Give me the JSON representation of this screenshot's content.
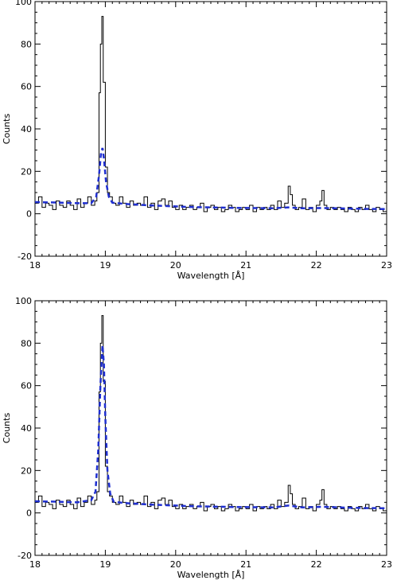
{
  "chart_data": [
    {
      "type": "line",
      "panel": "top",
      "xlabel": "Wavelength [Å]",
      "ylabel": "Counts",
      "xlim": [
        18,
        23
      ],
      "ylim": [
        -20,
        100
      ],
      "xticks": [
        18,
        19,
        20,
        21,
        22,
        23
      ],
      "yticks": [
        -20,
        0,
        20,
        40,
        60,
        80,
        100
      ],
      "grid": false,
      "series": [
        {
          "style": "histogram",
          "color": "#000000",
          "points": [
            [
              18.0,
              5
            ],
            [
              18.05,
              8
            ],
            [
              18.1,
              3
            ],
            [
              18.15,
              5
            ],
            [
              18.2,
              4
            ],
            [
              18.25,
              2
            ],
            [
              18.3,
              6
            ],
            [
              18.35,
              4
            ],
            [
              18.4,
              3
            ],
            [
              18.45,
              6
            ],
            [
              18.5,
              4
            ],
            [
              18.55,
              2
            ],
            [
              18.6,
              7
            ],
            [
              18.65,
              3
            ],
            [
              18.7,
              5
            ],
            [
              18.75,
              8
            ],
            [
              18.8,
              4
            ],
            [
              18.85,
              6
            ],
            [
              18.88,
              10
            ],
            [
              18.91,
              57
            ],
            [
              18.93,
              80
            ],
            [
              18.95,
              93
            ],
            [
              18.97,
              62
            ],
            [
              19.0,
              22
            ],
            [
              19.03,
              10
            ],
            [
              19.06,
              8
            ],
            [
              19.1,
              5
            ],
            [
              19.15,
              4
            ],
            [
              19.2,
              8
            ],
            [
              19.25,
              5
            ],
            [
              19.3,
              3
            ],
            [
              19.35,
              6
            ],
            [
              19.4,
              4
            ],
            [
              19.45,
              5
            ],
            [
              19.5,
              4
            ],
            [
              19.55,
              8
            ],
            [
              19.6,
              3
            ],
            [
              19.65,
              5
            ],
            [
              19.7,
              2
            ],
            [
              19.75,
              6
            ],
            [
              19.8,
              7
            ],
            [
              19.85,
              4
            ],
            [
              19.9,
              6
            ],
            [
              19.95,
              3
            ],
            [
              20.0,
              2
            ],
            [
              20.05,
              4
            ],
            [
              20.1,
              2
            ],
            [
              20.15,
              3
            ],
            [
              20.2,
              4
            ],
            [
              20.25,
              2
            ],
            [
              20.3,
              3
            ],
            [
              20.35,
              5
            ],
            [
              20.4,
              1
            ],
            [
              20.45,
              3
            ],
            [
              20.5,
              4
            ],
            [
              20.55,
              2
            ],
            [
              20.6,
              3
            ],
            [
              20.65,
              1
            ],
            [
              20.7,
              2
            ],
            [
              20.75,
              4
            ],
            [
              20.8,
              3
            ],
            [
              20.85,
              1
            ],
            [
              20.9,
              2
            ],
            [
              20.95,
              3
            ],
            [
              21.0,
              2
            ],
            [
              21.05,
              4
            ],
            [
              21.1,
              1
            ],
            [
              21.15,
              3
            ],
            [
              21.2,
              2
            ],
            [
              21.25,
              3
            ],
            [
              21.3,
              2
            ],
            [
              21.35,
              4
            ],
            [
              21.4,
              2
            ],
            [
              21.45,
              6
            ],
            [
              21.5,
              3
            ],
            [
              21.55,
              5
            ],
            [
              21.6,
              13
            ],
            [
              21.63,
              9
            ],
            [
              21.66,
              4
            ],
            [
              21.7,
              2
            ],
            [
              21.75,
              3
            ],
            [
              21.8,
              7
            ],
            [
              21.85,
              2
            ],
            [
              21.9,
              3
            ],
            [
              21.95,
              1
            ],
            [
              22.0,
              4
            ],
            [
              22.05,
              6
            ],
            [
              22.08,
              11
            ],
            [
              22.11,
              4
            ],
            [
              22.15,
              2
            ],
            [
              22.2,
              3
            ],
            [
              22.25,
              2
            ],
            [
              22.3,
              3
            ],
            [
              22.35,
              2
            ],
            [
              22.4,
              1
            ],
            [
              22.45,
              3
            ],
            [
              22.5,
              2
            ],
            [
              22.55,
              1
            ],
            [
              22.6,
              3
            ],
            [
              22.65,
              2
            ],
            [
              22.7,
              4
            ],
            [
              22.75,
              2
            ],
            [
              22.8,
              1
            ],
            [
              22.85,
              3
            ],
            [
              22.9,
              2
            ],
            [
              22.95,
              1
            ]
          ]
        },
        {
          "style": "dashed",
          "color": "#1f2fd0",
          "points": [
            [
              18.0,
              5.5
            ],
            [
              18.3,
              5.3
            ],
            [
              18.6,
              5
            ],
            [
              18.8,
              5
            ],
            [
              18.87,
              8
            ],
            [
              18.91,
              18
            ],
            [
              18.94,
              29
            ],
            [
              18.96,
              31
            ],
            [
              18.98,
              26
            ],
            [
              19.01,
              15
            ],
            [
              19.05,
              8
            ],
            [
              19.1,
              5.2
            ],
            [
              19.3,
              4.6
            ],
            [
              19.6,
              4
            ],
            [
              19.9,
              3.6
            ],
            [
              20.2,
              3.2
            ],
            [
              20.5,
              3
            ],
            [
              20.8,
              2.8
            ],
            [
              21.1,
              2.7
            ],
            [
              21.4,
              2.6
            ],
            [
              21.6,
              3
            ],
            [
              21.8,
              2.6
            ],
            [
              22.1,
              2.7
            ],
            [
              22.4,
              2.5
            ],
            [
              22.7,
              2.3
            ],
            [
              23.0,
              2.2
            ]
          ]
        }
      ]
    },
    {
      "type": "line",
      "panel": "bottom",
      "xlabel": "Wavelength [Å]",
      "ylabel": "Counts",
      "xlim": [
        18,
        23
      ],
      "ylim": [
        -20,
        100
      ],
      "xticks": [
        18,
        19,
        20,
        21,
        22,
        23
      ],
      "yticks": [
        -20,
        0,
        20,
        40,
        60,
        80,
        100
      ],
      "grid": false,
      "series": [
        {
          "style": "histogram",
          "color": "#000000",
          "points": [
            [
              18.0,
              5
            ],
            [
              18.05,
              8
            ],
            [
              18.1,
              3
            ],
            [
              18.15,
              5
            ],
            [
              18.2,
              4
            ],
            [
              18.25,
              2
            ],
            [
              18.3,
              6
            ],
            [
              18.35,
              4
            ],
            [
              18.4,
              3
            ],
            [
              18.45,
              6
            ],
            [
              18.5,
              4
            ],
            [
              18.55,
              2
            ],
            [
              18.6,
              7
            ],
            [
              18.65,
              3
            ],
            [
              18.7,
              5
            ],
            [
              18.75,
              8
            ],
            [
              18.8,
              4
            ],
            [
              18.85,
              6
            ],
            [
              18.88,
              10
            ],
            [
              18.91,
              57
            ],
            [
              18.93,
              80
            ],
            [
              18.95,
              93
            ],
            [
              18.97,
              62
            ],
            [
              19.0,
              22
            ],
            [
              19.03,
              10
            ],
            [
              19.06,
              8
            ],
            [
              19.1,
              5
            ],
            [
              19.15,
              4
            ],
            [
              19.2,
              8
            ],
            [
              19.25,
              5
            ],
            [
              19.3,
              3
            ],
            [
              19.35,
              6
            ],
            [
              19.4,
              4
            ],
            [
              19.45,
              5
            ],
            [
              19.5,
              4
            ],
            [
              19.55,
              8
            ],
            [
              19.6,
              3
            ],
            [
              19.65,
              5
            ],
            [
              19.7,
              2
            ],
            [
              19.75,
              6
            ],
            [
              19.8,
              7
            ],
            [
              19.85,
              4
            ],
            [
              19.9,
              6
            ],
            [
              19.95,
              3
            ],
            [
              20.0,
              2
            ],
            [
              20.05,
              4
            ],
            [
              20.1,
              2
            ],
            [
              20.15,
              3
            ],
            [
              20.2,
              4
            ],
            [
              20.25,
              2
            ],
            [
              20.3,
              3
            ],
            [
              20.35,
              5
            ],
            [
              20.4,
              1
            ],
            [
              20.45,
              3
            ],
            [
              20.5,
              4
            ],
            [
              20.55,
              2
            ],
            [
              20.6,
              3
            ],
            [
              20.65,
              1
            ],
            [
              20.7,
              2
            ],
            [
              20.75,
              4
            ],
            [
              20.8,
              3
            ],
            [
              20.85,
              1
            ],
            [
              20.9,
              2
            ],
            [
              20.95,
              3
            ],
            [
              21.0,
              2
            ],
            [
              21.05,
              4
            ],
            [
              21.1,
              1
            ],
            [
              21.15,
              3
            ],
            [
              21.2,
              2
            ],
            [
              21.25,
              3
            ],
            [
              21.3,
              2
            ],
            [
              21.35,
              4
            ],
            [
              21.4,
              2
            ],
            [
              21.45,
              6
            ],
            [
              21.5,
              3
            ],
            [
              21.55,
              5
            ],
            [
              21.6,
              13
            ],
            [
              21.63,
              9
            ],
            [
              21.66,
              4
            ],
            [
              21.7,
              2
            ],
            [
              21.75,
              3
            ],
            [
              21.8,
              7
            ],
            [
              21.85,
              2
            ],
            [
              21.9,
              3
            ],
            [
              21.95,
              1
            ],
            [
              22.0,
              4
            ],
            [
              22.05,
              6
            ],
            [
              22.08,
              11
            ],
            [
              22.11,
              4
            ],
            [
              22.15,
              2
            ],
            [
              22.2,
              3
            ],
            [
              22.25,
              2
            ],
            [
              22.3,
              3
            ],
            [
              22.35,
              2
            ],
            [
              22.4,
              1
            ],
            [
              22.45,
              3
            ],
            [
              22.5,
              2
            ],
            [
              22.55,
              1
            ],
            [
              22.6,
              3
            ],
            [
              22.65,
              2
            ],
            [
              22.7,
              4
            ],
            [
              22.75,
              2
            ],
            [
              22.8,
              1
            ],
            [
              22.85,
              3
            ],
            [
              22.9,
              2
            ],
            [
              22.95,
              1
            ]
          ]
        },
        {
          "style": "dashed",
          "color": "#1f2fd0",
          "points": [
            [
              18.0,
              5.5
            ],
            [
              18.3,
              5.3
            ],
            [
              18.6,
              5
            ],
            [
              18.8,
              6
            ],
            [
              18.86,
              10
            ],
            [
              18.9,
              30
            ],
            [
              18.93,
              60
            ],
            [
              18.96,
              79
            ],
            [
              18.98,
              70
            ],
            [
              19.0,
              45
            ],
            [
              19.03,
              20
            ],
            [
              19.07,
              9
            ],
            [
              19.12,
              5.2
            ],
            [
              19.3,
              4.6
            ],
            [
              19.6,
              4
            ],
            [
              19.9,
              3.6
            ],
            [
              20.2,
              3.2
            ],
            [
              20.5,
              3
            ],
            [
              20.8,
              2.8
            ],
            [
              21.1,
              2.7
            ],
            [
              21.4,
              2.6
            ],
            [
              21.6,
              3.5
            ],
            [
              21.8,
              2.6
            ],
            [
              22.1,
              2.9
            ],
            [
              22.4,
              2.5
            ],
            [
              22.7,
              2.3
            ],
            [
              23.0,
              2.2
            ]
          ]
        }
      ]
    }
  ]
}
